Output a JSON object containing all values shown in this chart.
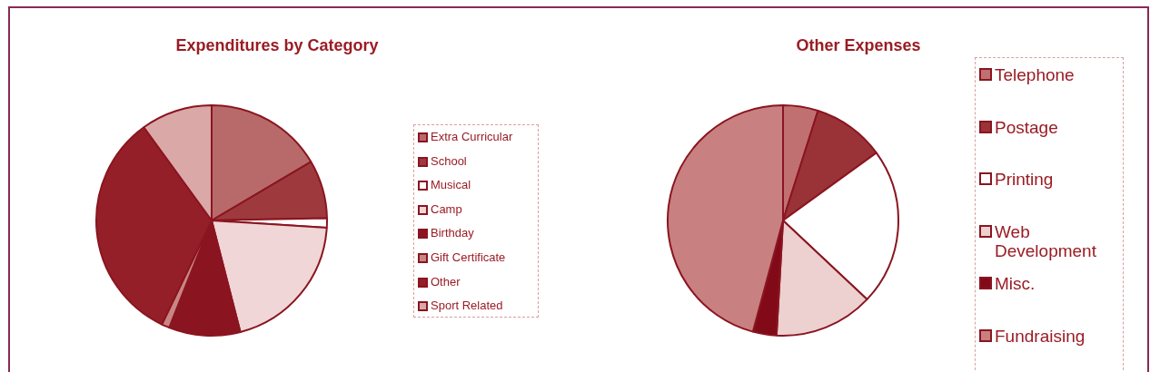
{
  "chart_data": [
    {
      "type": "pie",
      "title": "Expenditures by Category",
      "legend": "right",
      "categories": [
        "Extra Curricular",
        "School",
        "Musical",
        "Camp",
        "Birthday",
        "Gift Certificate",
        "Other",
        "Sport Related"
      ],
      "values": [
        16.5,
        8.2,
        1.3,
        20,
        10,
        1.1,
        32.9,
        10
      ],
      "colors": [
        "#b86a6a",
        "#9e3a3e",
        "#ffffff",
        "#f0d6d6",
        "#8a1520",
        "#c98585",
        "#951f28",
        "#dba8a8"
      ]
    },
    {
      "type": "pie",
      "title": "Other Expenses",
      "legend": "right",
      "categories": [
        "Telephone",
        "Postage",
        "Printing",
        "Web Development",
        "Misc.",
        "Fundraising"
      ],
      "values": [
        4.9,
        10.1,
        22,
        13.9,
        3.3,
        45.8
      ],
      "colors": [
        "#c07070",
        "#9a3338",
        "#ffffff",
        "#edd0d0",
        "#820a18",
        "#c98080"
      ]
    }
  ]
}
